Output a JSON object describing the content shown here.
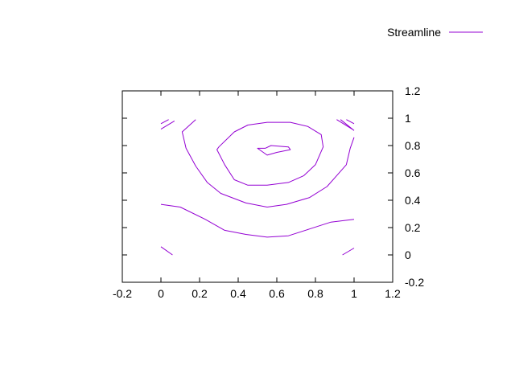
{
  "chart_data": {
    "type": "line",
    "title": "",
    "xlabel": "",
    "ylabel": "",
    "xlim": [
      -0.2,
      1.2
    ],
    "ylim": [
      -0.2,
      1.2
    ],
    "x_ticks": [
      -0.2,
      0,
      0.2,
      0.4,
      0.6,
      0.8,
      1,
      1.2
    ],
    "y_ticks": [
      -0.2,
      0,
      0.2,
      0.4,
      0.6,
      0.8,
      1,
      1.2
    ],
    "y_axis_side": "right",
    "grid": false,
    "legend_position": "top-right",
    "series": [
      {
        "name": "Streamline",
        "color": "#9400d3",
        "segments": [
          [
            [
              0.54,
              0.78
            ],
            [
              0.57,
              0.8
            ],
            [
              0.66,
              0.79
            ],
            [
              0.67,
              0.77
            ],
            [
              0.6,
              0.75
            ],
            [
              0.55,
              0.73
            ],
            [
              0.5,
              0.78
            ],
            [
              0.54,
              0.78
            ]
          ],
          [
            [
              0.3,
              0.79
            ],
            [
              0.38,
              0.9
            ],
            [
              0.45,
              0.95
            ],
            [
              0.55,
              0.97
            ],
            [
              0.67,
              0.97
            ],
            [
              0.76,
              0.94
            ],
            [
              0.83,
              0.88
            ],
            [
              0.84,
              0.79
            ],
            [
              0.8,
              0.66
            ],
            [
              0.74,
              0.58
            ],
            [
              0.66,
              0.53
            ],
            [
              0.55,
              0.51
            ],
            [
              0.45,
              0.51
            ],
            [
              0.38,
              0.55
            ],
            [
              0.33,
              0.66
            ],
            [
              0.29,
              0.77
            ],
            [
              0.3,
              0.79
            ]
          ],
          [
            [
              0.18,
              0.99
            ],
            [
              0.11,
              0.9
            ],
            [
              0.13,
              0.78
            ],
            [
              0.18,
              0.65
            ],
            [
              0.24,
              0.53
            ],
            [
              0.31,
              0.45
            ],
            [
              0.44,
              0.38
            ],
            [
              0.55,
              0.35
            ],
            [
              0.65,
              0.37
            ],
            [
              0.77,
              0.42
            ],
            [
              0.86,
              0.5
            ],
            [
              0.91,
              0.58
            ],
            [
              0.96,
              0.66
            ],
            [
              0.98,
              0.78
            ],
            [
              1.0,
              0.86
            ]
          ],
          [
            [
              0.0,
              0.37
            ],
            [
              0.1,
              0.35
            ],
            [
              0.23,
              0.26
            ],
            [
              0.33,
              0.18
            ],
            [
              0.44,
              0.15
            ],
            [
              0.55,
              0.13
            ],
            [
              0.66,
              0.14
            ],
            [
              0.77,
              0.19
            ],
            [
              0.88,
              0.24
            ],
            [
              1.0,
              0.26
            ]
          ],
          [
            [
              0.0,
              0.92
            ],
            [
              0.07,
              0.98
            ]
          ],
          [
            [
              0.0,
              0.96
            ],
            [
              0.04,
              0.99
            ]
          ],
          [
            [
              0.93,
              0.99
            ],
            [
              1.0,
              0.91
            ]
          ],
          [
            [
              0.91,
              0.99
            ],
            [
              0.99,
              0.92
            ]
          ],
          [
            [
              0.96,
              0.99
            ],
            [
              1.0,
              0.96
            ]
          ],
          [
            [
              0.0,
              0.06
            ],
            [
              0.06,
              0.0
            ]
          ],
          [
            [
              0.94,
              0.0
            ],
            [
              1.0,
              0.05
            ]
          ]
        ]
      }
    ]
  }
}
